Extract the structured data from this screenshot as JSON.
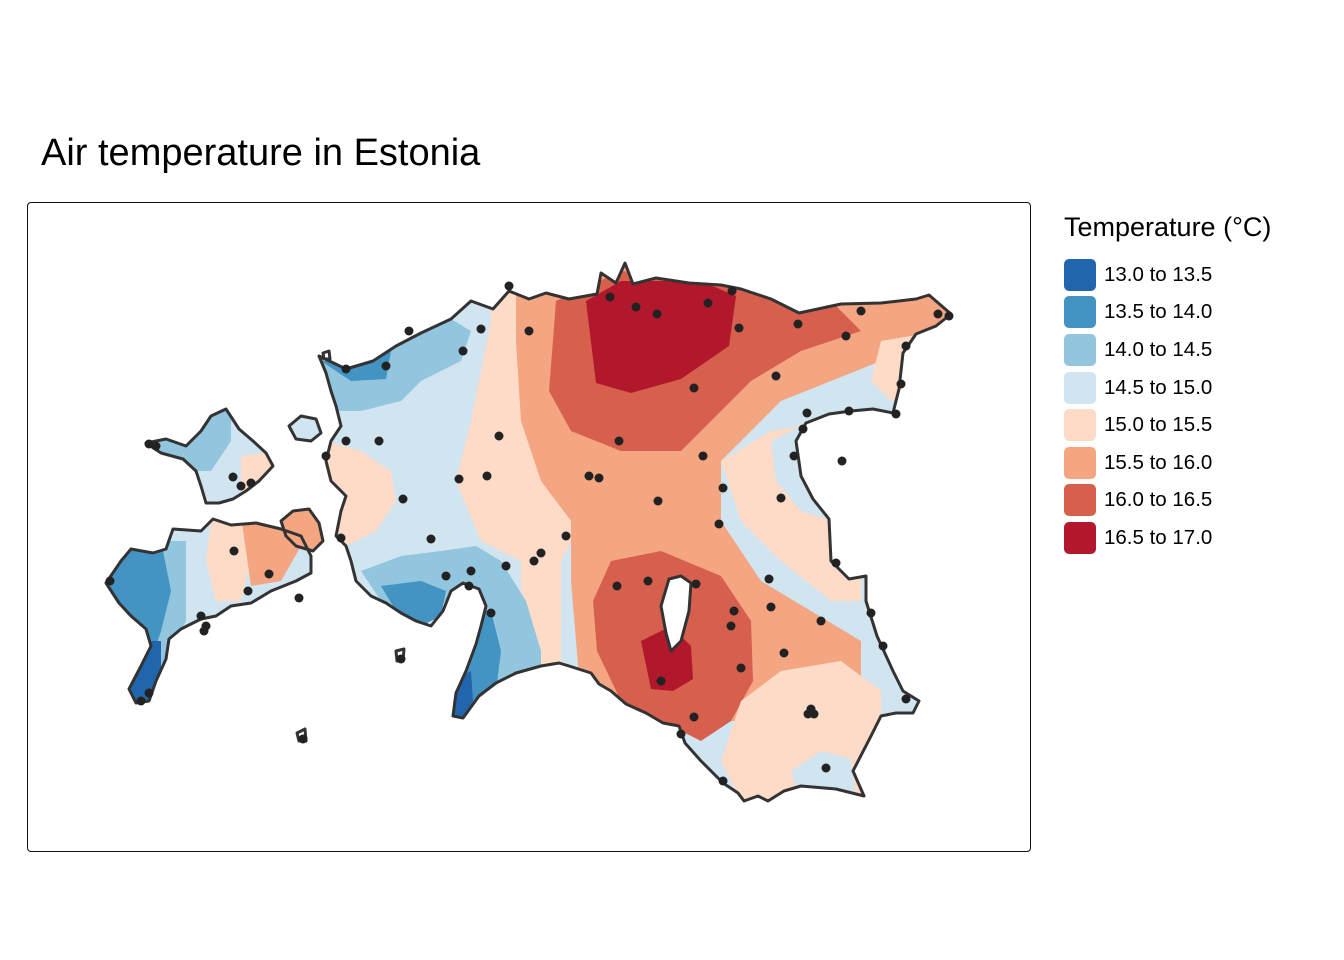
{
  "title": "Air temperature in Estonia",
  "legend": {
    "title": "Temperature (°C)",
    "items": [
      {
        "label": "13.0 to 13.5",
        "color": "#2166ac"
      },
      {
        "label": "13.5 to 14.0",
        "color": "#4393c3"
      },
      {
        "label": "14.0 to 14.5",
        "color": "#92c5de"
      },
      {
        "label": "14.5 to 15.0",
        "color": "#d1e5f0"
      },
      {
        "label": "15.0 to 15.5",
        "color": "#fddbc7"
      },
      {
        "label": "15.5 to 16.0",
        "color": "#f4a582"
      },
      {
        "label": "16.0 to 16.5",
        "color": "#d6604d"
      },
      {
        "label": "16.5 to 17.0",
        "color": "#b2182b"
      }
    ]
  },
  "colors": {
    "outline": "#333333",
    "station_point": "#222222",
    "lake": "#ffffff"
  }
}
